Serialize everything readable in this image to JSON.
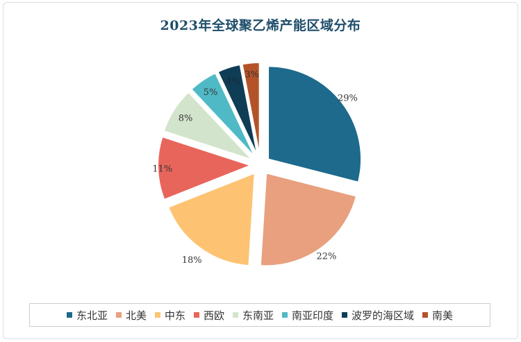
{
  "chart_data": {
    "type": "pie",
    "title": "2023年全球聚乙烯产能区域分布",
    "labels": [
      "东北亚",
      "北美",
      "中东",
      "西欧",
      "东南亚",
      "南亚印度",
      "波罗的海区域",
      "南美"
    ],
    "values": [
      29,
      22,
      18,
      11,
      8,
      5,
      4,
      3
    ],
    "data_labels": [
      "29%",
      "22%",
      "18%",
      "11%",
      "8%",
      "5%",
      "4%",
      "3%"
    ],
    "colors": [
      "#1d6a8c",
      "#e8a07e",
      "#fdc373",
      "#e8655c",
      "#d3e4cc",
      "#4fbac6",
      "#0e3d55",
      "#b4532a"
    ],
    "exploded": true,
    "legend": "bottom"
  }
}
